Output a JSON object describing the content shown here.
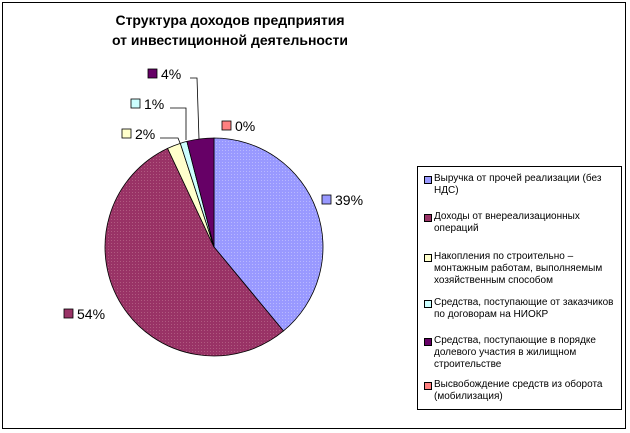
{
  "chart_data": {
    "type": "pie",
    "title_lines": [
      "Структура доходов предприятия",
      "от инвестиционной деятельности"
    ],
    "slices": [
      {
        "name": "Выручка от прочей реализации (без НДС)",
        "value": 39,
        "label": "39%",
        "color": "#9999ff"
      },
      {
        "name": "Доходы от внереализационных операций",
        "value": 54,
        "label": "54%",
        "color": "#993366"
      },
      {
        "name": "Накопления по строительно – монтажным работам, выполняемым хозяйственным способом",
        "value": 2,
        "label": "2%",
        "color": "#ffffcc"
      },
      {
        "name": "Средства, поступающие от заказчиков по договорам на НИОКР",
        "value": 1,
        "label": "1%",
        "color": "#ccffff"
      },
      {
        "name": "Средства, поступающие в порядке долевого участия в жилищном строительстве",
        "value": 4,
        "label": "4%",
        "color": "#660066"
      },
      {
        "name": "Высвобождение средств из оборота (мобилизация)",
        "value": 0,
        "label": "0%",
        "color": "#ff8080"
      }
    ],
    "legend_position": "right"
  }
}
